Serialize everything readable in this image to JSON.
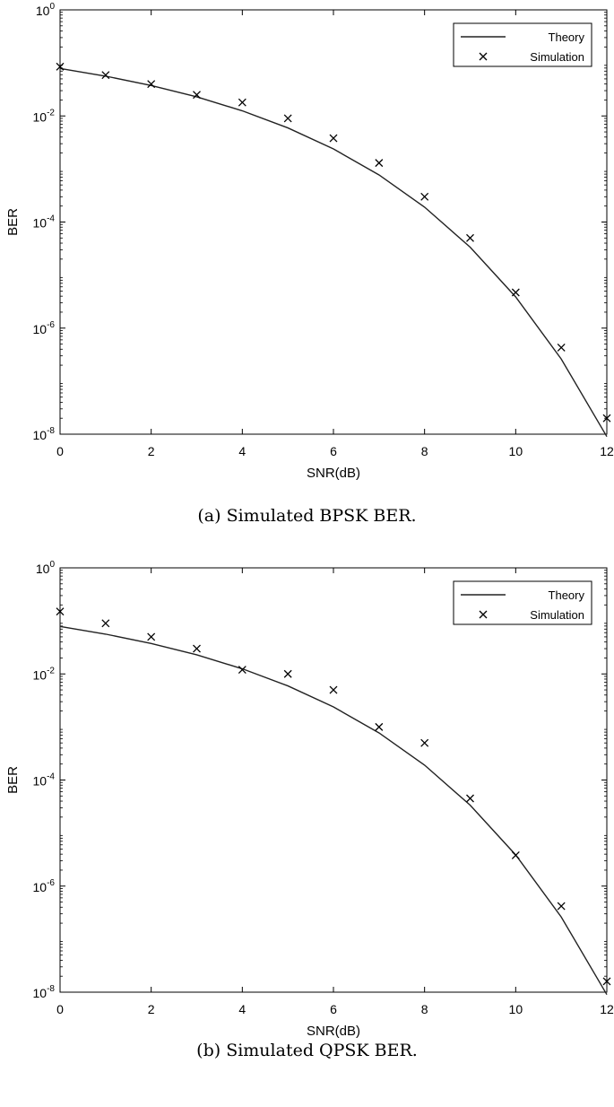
{
  "chart_data": [
    {
      "type": "line",
      "xlabel": "SNR(dB)",
      "ylabel": "BER",
      "xlim": [
        0,
        12
      ],
      "ylim": [
        1e-08,
        1
      ],
      "y_scale": "log",
      "x_ticks": [
        "0",
        "2",
        "4",
        "6",
        "8",
        "10",
        "12"
      ],
      "y_ticks": [
        {
          "base": "10",
          "exp": "0"
        },
        {
          "base": "10",
          "exp": "-2"
        },
        {
          "base": "10",
          "exp": "-4"
        },
        {
          "base": "10",
          "exp": "-6"
        },
        {
          "base": "10",
          "exp": "-8"
        }
      ],
      "legend_position": "top-right",
      "series": [
        {
          "name": "Theory",
          "style": "line",
          "x": [
            0,
            1,
            2,
            3,
            4,
            5,
            6,
            7,
            8,
            9,
            10,
            11,
            12
          ],
          "y": [
            0.0786,
            0.0563,
            0.0375,
            0.0229,
            0.0125,
            0.00595,
            0.00239,
            0.000773,
            0.000191,
            3.36e-05,
            3.87e-06,
            2.61e-07,
            9e-09
          ]
        },
        {
          "name": "Simulation",
          "style": "marker-x",
          "x": [
            0,
            1,
            2,
            3,
            4,
            5,
            6,
            7,
            8,
            9,
            10,
            11,
            12
          ],
          "y": [
            0.085,
            0.059,
            0.04,
            0.025,
            0.018,
            0.009,
            0.0038,
            0.0013,
            0.0003,
            5e-05,
            4.7e-06,
            4.3e-07,
            2e-08
          ]
        }
      ],
      "caption": "(a) Simulated BPSK BER."
    },
    {
      "type": "line",
      "xlabel": "SNR(dB)",
      "ylabel": "BER",
      "xlim": [
        0,
        12
      ],
      "ylim": [
        1e-08,
        1
      ],
      "y_scale": "log",
      "x_ticks": [
        "0",
        "2",
        "4",
        "6",
        "8",
        "10",
        "12"
      ],
      "y_ticks": [
        {
          "base": "10",
          "exp": "0"
        },
        {
          "base": "10",
          "exp": "-2"
        },
        {
          "base": "10",
          "exp": "-4"
        },
        {
          "base": "10",
          "exp": "-6"
        },
        {
          "base": "10",
          "exp": "-8"
        }
      ],
      "legend_position": "top-right",
      "series": [
        {
          "name": "Theory",
          "style": "line",
          "x": [
            0,
            1,
            2,
            3,
            4,
            5,
            6,
            7,
            8,
            9,
            10,
            11,
            12
          ],
          "y": [
            0.0786,
            0.0563,
            0.0375,
            0.0229,
            0.0125,
            0.00595,
            0.00239,
            0.000773,
            0.000191,
            3.36e-05,
            3.87e-06,
            2.61e-07,
            9e-09
          ]
        },
        {
          "name": "Simulation",
          "style": "marker-x",
          "x": [
            0,
            1,
            2,
            3,
            4,
            5,
            6,
            7,
            8,
            9,
            10,
            11,
            12
          ],
          "y": [
            0.15,
            0.09,
            0.05,
            0.03,
            0.012,
            0.01,
            0.005,
            0.001,
            0.0005,
            4.5e-05,
            3.8e-06,
            4.2e-07,
            1.6e-08
          ]
        }
      ],
      "caption": "(b) Simulated QPSK BER."
    }
  ]
}
